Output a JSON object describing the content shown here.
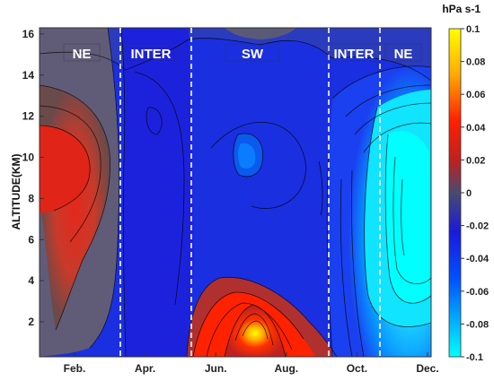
{
  "chart_data": {
    "type": "heatmap",
    "title": "",
    "xlabel": "",
    "ylabel": "ALTITUDE(KM)",
    "x_ticks": [
      "Feb.",
      "Apr.",
      "Jun.",
      "Aug.",
      "Oct.",
      "Dec."
    ],
    "y_ticks": [
      "2",
      "4",
      "6",
      "8",
      "10",
      "12",
      "14",
      "16"
    ],
    "ylim": [
      0.3,
      16.3
    ],
    "colorbar": {
      "title": "hPa s-1",
      "ticks": [
        "0.1",
        "0.08",
        "0.06",
        "0.04",
        "0.02",
        "0",
        "-0.02",
        "-0.04",
        "-0.06",
        "-0.08",
        "-0.1"
      ],
      "range": [
        -0.1,
        0.1
      ],
      "colors": [
        "#00ffff",
        "#0050ff",
        "#1a1adc",
        "#4a4a70",
        "#c02020",
        "#ff2000",
        "#ffaa00",
        "#ffff00"
      ]
    },
    "season_labels": [
      "NE",
      "INTER",
      "SW",
      "INTER",
      "NE"
    ],
    "dividers": [
      "late Mar.",
      "mid May",
      "late Sep.",
      "early Nov."
    ],
    "contour_features": [
      {
        "region": "NE (Jan-Mar)",
        "peak_value": 0.035,
        "altitude_km": [
          3,
          13
        ],
        "sign": "positive"
      },
      {
        "region": "SW (Jun-Aug)",
        "peak_value": 0.1,
        "altitude_km": [
          0.5,
          3
        ],
        "sign": "positive"
      },
      {
        "region": "SW (Jul)",
        "peak_value": -0.045,
        "altitude_km": [
          8,
          11
        ],
        "sign": "negative"
      },
      {
        "region": "INTER/NE (Oct-Dec)",
        "peak_value": -0.1,
        "altitude_km": [
          1,
          12
        ],
        "sign": "negative"
      }
    ]
  }
}
